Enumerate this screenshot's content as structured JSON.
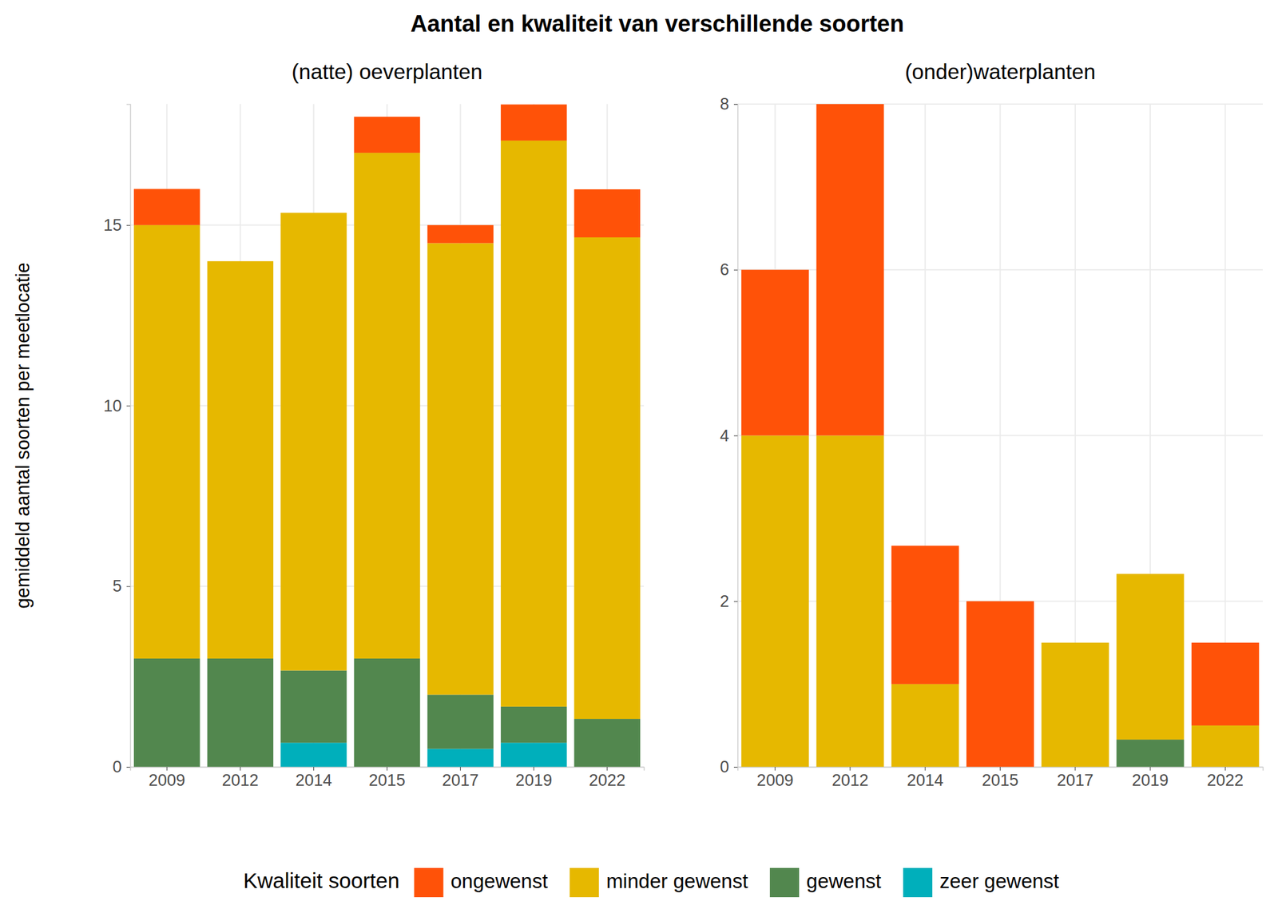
{
  "chart_data": [
    {
      "type": "bar",
      "stacked": true,
      "title": "Aantal en kwaliteit van verschillende soorten",
      "subtitle": "(natte) oeverplanten",
      "y_label": "gemiddeld aantal soorten per meetlocatie",
      "legend_title": "Kwaliteit soorten",
      "legend": "bottom",
      "grid": true,
      "categories": [
        "2009",
        "2012",
        "2014",
        "2015",
        "2017",
        "2019",
        "2022"
      ],
      "series": [
        {
          "name": "zeer gewenst",
          "color": "#00AFBB",
          "values": [
            0,
            0,
            0.67,
            0,
            0.5,
            0.67,
            0
          ]
        },
        {
          "name": "gewenst",
          "color": "#52874E",
          "values": [
            3,
            3,
            2,
            3,
            1.5,
            1,
            1.33
          ]
        },
        {
          "name": "minder gewenst",
          "color": "#E6B800",
          "values": [
            12,
            11,
            12.67,
            14,
            12.5,
            15.67,
            13.33
          ]
        },
        {
          "name": "ongewenst",
          "color": "#FF5208",
          "values": [
            1,
            0,
            0,
            1,
            0.5,
            1,
            1.33
          ]
        }
      ],
      "ylim": [
        0,
        18.35
      ],
      "yticks": [
        0,
        5,
        10,
        15
      ]
    },
    {
      "type": "bar",
      "stacked": true,
      "subtitle": "(onder)waterplanten",
      "grid": true,
      "categories": [
        "2009",
        "2012",
        "2014",
        "2015",
        "2017",
        "2019",
        "2022"
      ],
      "series": [
        {
          "name": "zeer gewenst",
          "color": "#00AFBB",
          "values": [
            0,
            0,
            0,
            0,
            0,
            0,
            0
          ]
        },
        {
          "name": "gewenst",
          "color": "#52874E",
          "values": [
            0,
            0,
            0,
            0,
            0,
            0.33,
            0
          ]
        },
        {
          "name": "minder gewenst",
          "color": "#E6B800",
          "values": [
            4,
            4,
            1,
            0,
            1.5,
            2,
            0.5
          ]
        },
        {
          "name": "ongewenst",
          "color": "#FF5208",
          "values": [
            2,
            4,
            1.67,
            2,
            0,
            0,
            1
          ]
        }
      ],
      "ylim": [
        0,
        8
      ],
      "yticks": [
        0,
        2,
        4,
        6,
        8
      ]
    }
  ]
}
